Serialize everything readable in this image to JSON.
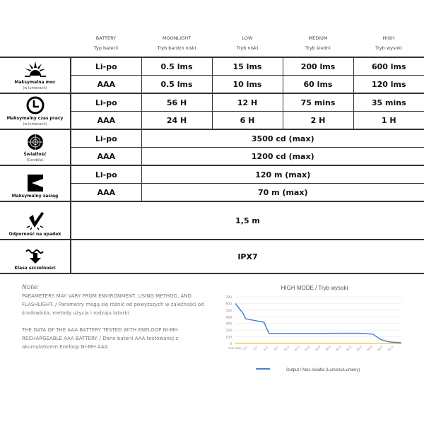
{
  "headers": [
    {
      "en": "BATTERY",
      "pl": "Typ baterii"
    },
    {
      "en": "MOONLIGHT",
      "pl": "Tryb  bardzo niski"
    },
    {
      "en": "LOW",
      "pl": "Tryb  niski"
    },
    {
      "en": "MEDIUM",
      "pl": "Tryb  średni"
    },
    {
      "en": "HIGH",
      "pl": "Tryb  wysoki"
    }
  ],
  "power": {
    "label": "Maksymalna moc",
    "sub": "(w lumenach)",
    "icon": "sun-burst-icon",
    "rows": [
      [
        "Li-po",
        "0.5 lms",
        "15 lms",
        "200 lms",
        "600 lms"
      ],
      [
        "AAA",
        "0.5 lms",
        "10 lms",
        "60 lms",
        "120 lms"
      ]
    ]
  },
  "runtime": {
    "label": "Maksymalny czas pracy",
    "sub": "(w lumenach)",
    "icon": "clock-icon",
    "rows": [
      [
        "Li-po",
        "56 H",
        "12 H",
        "75 mins",
        "35 mins"
      ],
      [
        "AAA",
        "24 H",
        "6 H",
        "2 H",
        "1 H"
      ]
    ]
  },
  "intensity": {
    "label": "Światłość",
    "sub": "(Candela)",
    "icon": "target-icon",
    "rows": [
      [
        "Li-po",
        "3500 cd (max)"
      ],
      [
        "AAA",
        "1200 cd (max)"
      ]
    ]
  },
  "range": {
    "label": "Maksymalny zasięg",
    "icon": "beam-icon",
    "rows": [
      [
        "Li-po",
        "120 m (max)"
      ],
      [
        "AAA",
        "70 m (max)"
      ]
    ]
  },
  "impact": {
    "label": "Odporność na upadek",
    "icon": "impact-check-icon",
    "value": "1,5 m"
  },
  "waterproof": {
    "label": "Klasa szczelności",
    "icon": "water-arrow-icon",
    "value": "IPX7"
  },
  "note": {
    "title": "Note:",
    "p1": "PARAMETERS MAY VARY FROM ENVIRONMENT, USING METHOD, AND FLASHLIGHT. / Parametry mogą się różnić od powyższych w zależności od środowiska, metody użycia i rodzaju latarki.",
    "p2": "THE DATA OF THE AAA BATTERY TESTED WITH ENELOOP NI-MH RECHARGEABLE AAA BATTERY. / Dane baterii AAA testowanej z akumulatorem Eneloop Ni-MH AAA"
  },
  "chart_data": {
    "type": "line",
    "title": "HIGH MODE / Tryb wysoki",
    "xlabel": "TIME (MIN)",
    "ylim": [
      0,
      700
    ],
    "xlim": [
      0,
      32
    ],
    "yticks": [
      0,
      100,
      200,
      300,
      400,
      500,
      600,
      700
    ],
    "xticks": [
      "2.0",
      "4.0",
      "6.0",
      "8.0",
      "10.0",
      "12.0",
      "14.0",
      "16.0",
      "18.0",
      "20.0",
      "22.0",
      "24.0",
      "26.0",
      "28.0",
      "30.0"
    ],
    "grid": true,
    "legend": "bottom",
    "series": [
      {
        "name": "Output / Moc światła (Lumens/Lumeny)",
        "color": "#4a7fd4",
        "x": [
          0,
          1.5,
          2,
          4,
          5.5,
          6.5,
          8,
          12,
          20,
          24,
          26.5,
          28,
          29,
          30,
          32
        ],
        "y": [
          600,
          450,
          370,
          340,
          320,
          150,
          148,
          150,
          152,
          152,
          140,
          60,
          35,
          20,
          10
        ]
      },
      {
        "color": "#f2b600",
        "x": [
          0,
          32
        ],
        "y": [
          0,
          0
        ]
      }
    ]
  }
}
